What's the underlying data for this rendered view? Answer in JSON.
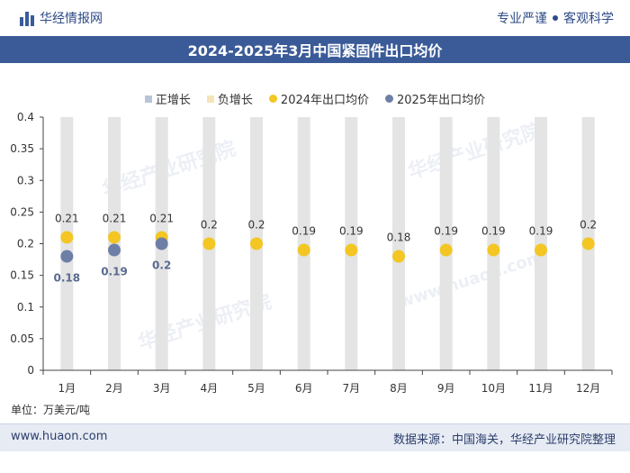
{
  "header": {
    "brand": "华经情报网",
    "slogan_left": "专业严谨",
    "slogan_right": "客观科学"
  },
  "title": "2024-2025年3月中国紧固件出口均价",
  "unit_label": "单位：万美元/吨",
  "footer": {
    "url": "www.huaon.com",
    "source": "数据来源：中国海关，华经产业研究院整理"
  },
  "watermarks": [
    "华经产业研究院",
    "华经产业研究院",
    "华经产业研究院"
  ],
  "watermark_url": "www.huaon.com",
  "colors": {
    "title_bg": "#3b5b98",
    "positive": "#b8c4d8",
    "negative": "#f5e4b8",
    "series_2024": "#f3c623",
    "series_2025": "#6e7fa6",
    "bar_bg": "#e4e4e4"
  },
  "legend": [
    {
      "label": "正增长",
      "key": "positive"
    },
    {
      "label": "负增长",
      "key": "negative"
    },
    {
      "label": "2024年出口均价",
      "key": "series_2024"
    },
    {
      "label": "2025年出口均价",
      "key": "series_2025"
    }
  ],
  "chart_data": {
    "type": "scatter",
    "categories": [
      "1月",
      "2月",
      "3月",
      "4月",
      "5月",
      "6月",
      "7月",
      "8月",
      "9月",
      "10月",
      "11月",
      "12月"
    ],
    "series": [
      {
        "name": "2024年出口均价",
        "values": [
          0.21,
          0.21,
          0.21,
          0.2,
          0.2,
          0.19,
          0.19,
          0.18,
          0.19,
          0.19,
          0.19,
          0.2
        ]
      },
      {
        "name": "2025年出口均价",
        "values": [
          0.18,
          0.19,
          0.2,
          null,
          null,
          null,
          null,
          null,
          null,
          null,
          null,
          null
        ]
      }
    ],
    "ylim": [
      0,
      0.4
    ],
    "yticks": [
      "0",
      "0.05",
      "0.1",
      "0.15",
      "0.2",
      "0.25",
      "0.3",
      "0.35",
      "0.4"
    ],
    "grid": false,
    "legend_position": "top"
  }
}
